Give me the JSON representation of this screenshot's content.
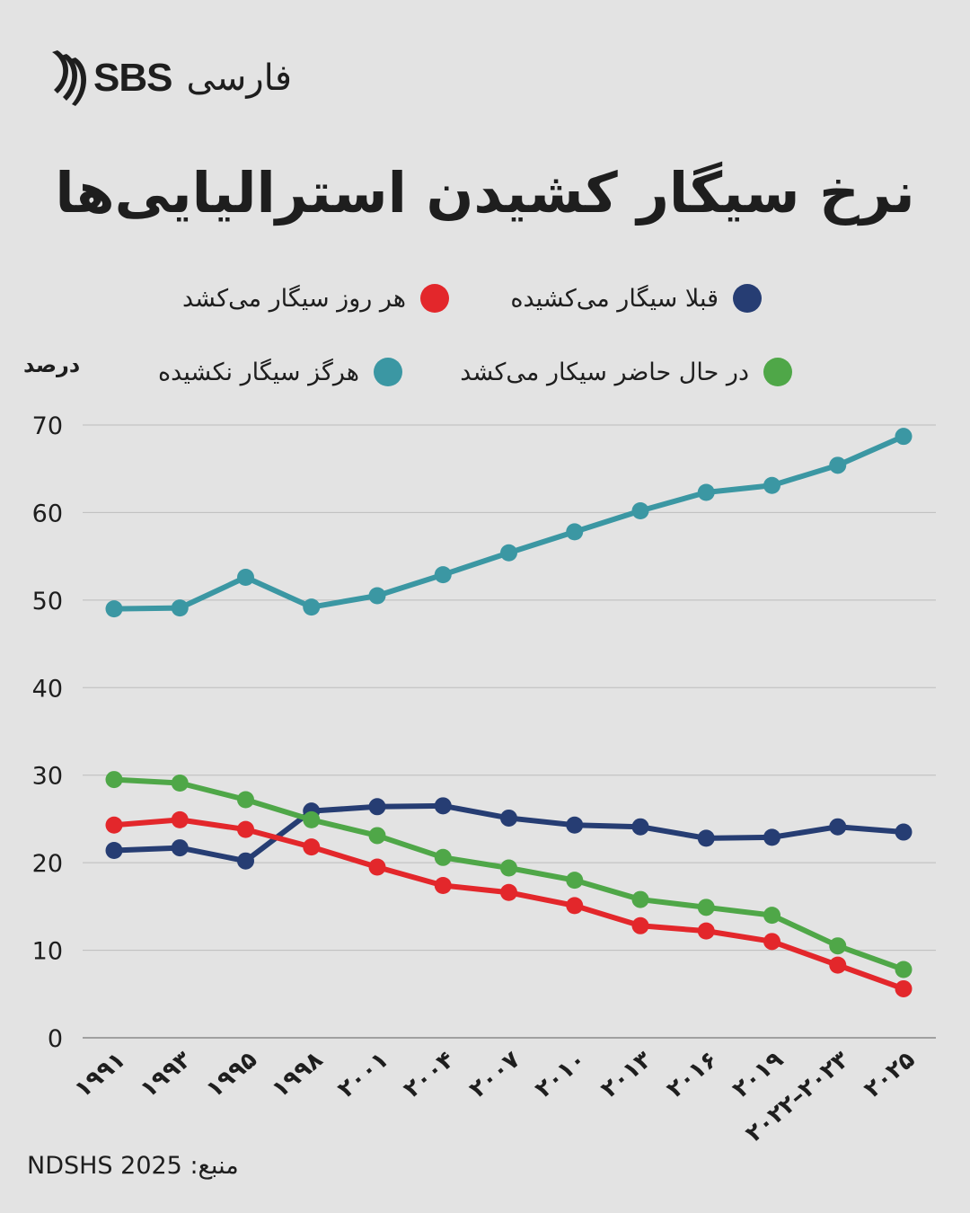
{
  "brand": {
    "logo_icon": "sbs-stripes-logo",
    "name": "SBS",
    "language": "فارسی"
  },
  "title": "نرخ سیگار کشیدن استرالیایی‌ها",
  "unit_label": "درصد",
  "source_text": "منبع: NDSHS 2025",
  "colors": {
    "daily": "#e3272b",
    "former": "#263d73",
    "never": "#3b97a3",
    "current": "#4fa748",
    "grid": "#bdbdbd",
    "background": "#e3e3e3"
  },
  "chart_data": {
    "type": "line",
    "title": "نرخ سیگار کشیدن استرالیایی‌ها",
    "ylabel": "درصد",
    "xlabel": "",
    "ylim": [
      0,
      70
    ],
    "yticks": [
      0,
      10,
      20,
      30,
      40,
      50,
      60,
      70
    ],
    "grid": true,
    "legend_position": "top",
    "categories": [
      "۱۹۹۱",
      "۱۹۹۳",
      "۱۹۹۵",
      "۱۹۹۸",
      "۲۰۰۱",
      "۲۰۰۴",
      "۲۰۰۷",
      "۲۰۱۰",
      "۲۰۱۳",
      "۲۰۱۶",
      "۲۰۱۹",
      "۲۰۲۲–۲۰۲۳",
      "۲۰۲۵"
    ],
    "series": [
      {
        "key": "daily",
        "name": "هر روز سیگار می‌کشد",
        "color": "#e3272b",
        "values": [
          24.3,
          24.9,
          23.8,
          21.8,
          19.5,
          17.4,
          16.6,
          15.1,
          12.8,
          12.2,
          11.0,
          8.3,
          5.6
        ]
      },
      {
        "key": "former",
        "name": "قبلا سیگار می‌کشیده",
        "color": "#263d73",
        "values": [
          21.4,
          21.7,
          20.2,
          25.9,
          26.4,
          26.5,
          25.1,
          24.3,
          24.1,
          22.8,
          22.9,
          24.1,
          23.5
        ]
      },
      {
        "key": "current",
        "name": "در حال حاضر سیکار می‌کشد",
        "color": "#4fa748",
        "values": [
          29.5,
          29.1,
          27.2,
          24.9,
          23.1,
          20.6,
          19.4,
          18.0,
          15.8,
          14.9,
          14.0,
          10.5,
          7.8
        ]
      },
      {
        "key": "never",
        "name": "هرگز سیگار نکشیده",
        "color": "#3b97a3",
        "values": [
          49.0,
          49.1,
          52.6,
          49.2,
          50.5,
          52.9,
          55.4,
          57.8,
          60.2,
          62.3,
          63.1,
          65.4,
          68.7
        ]
      }
    ]
  }
}
